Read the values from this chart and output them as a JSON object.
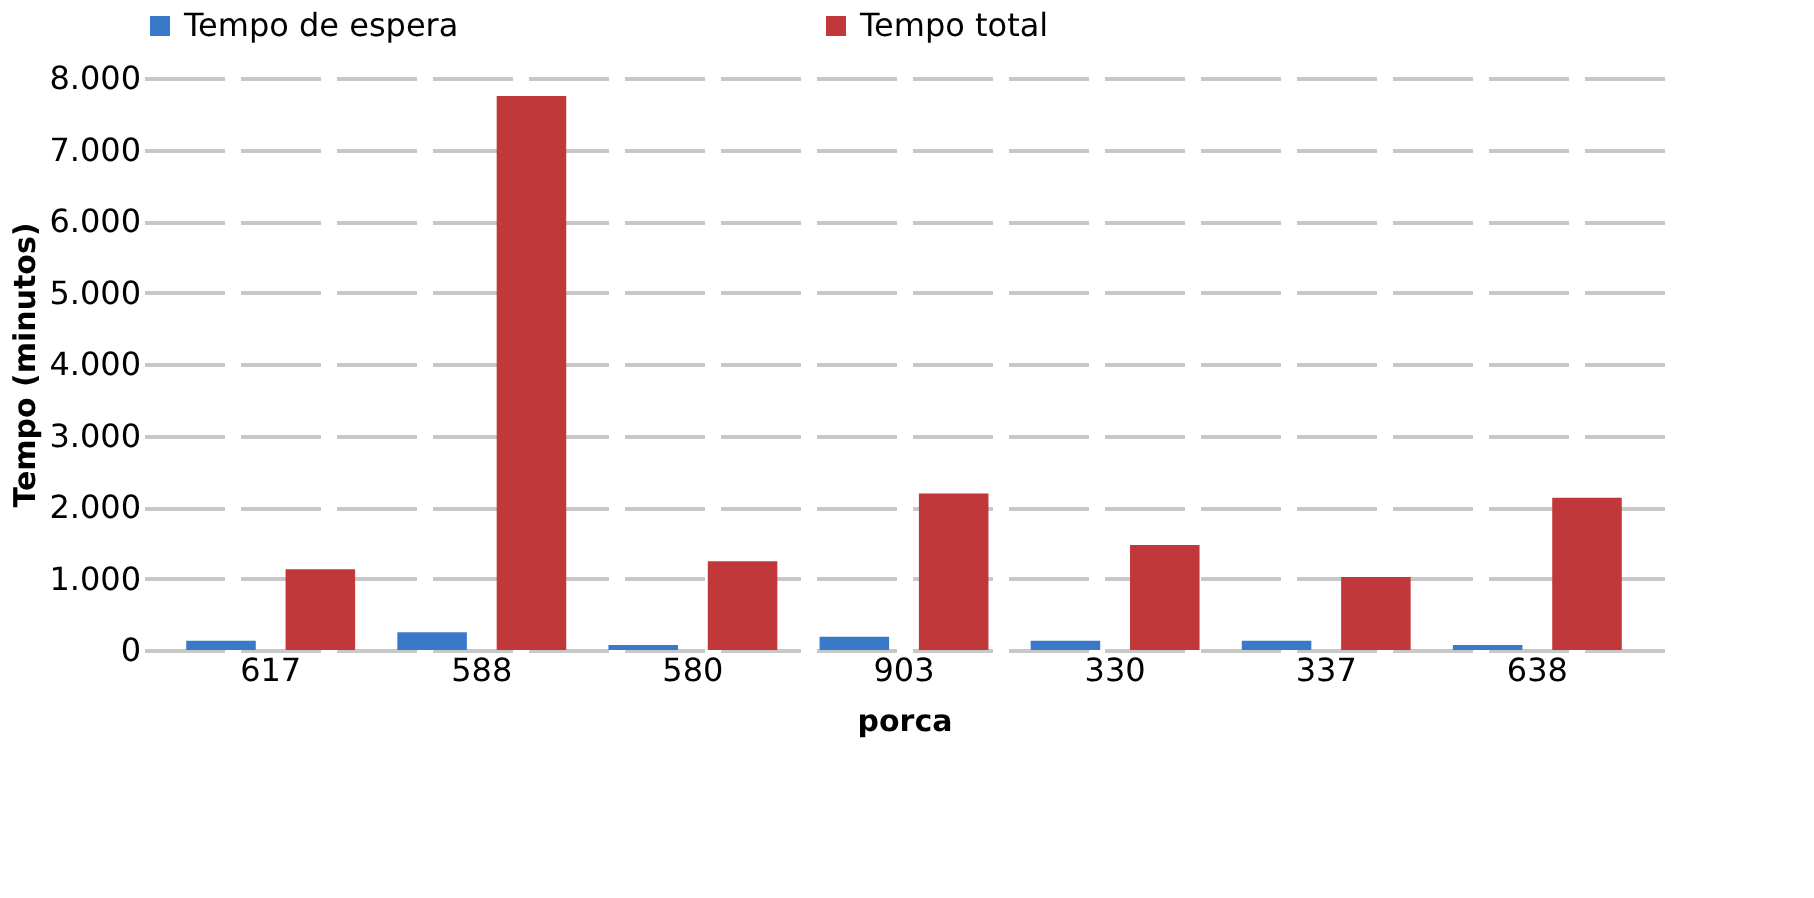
{
  "chart_data": {
    "type": "bar",
    "xlabel": "porca",
    "ylabel": "Tempo (minutos)",
    "categories": [
      "617",
      "588",
      "580",
      "903",
      "330",
      "337",
      "638"
    ],
    "series": [
      {
        "name": "Tempo de espera",
        "color": "#3a78c8",
        "values": [
          130,
          250,
          70,
          185,
          130,
          130,
          70
        ]
      },
      {
        "name": "Tempo total",
        "color": "#c0383a",
        "values": [
          1130,
          7750,
          1240,
          2190,
          1470,
          1020,
          2130
        ]
      }
    ],
    "ylim": [
      0,
      8000
    ],
    "yticks": [
      0,
      {
        "value": 1000,
        "label": "1.000"
      },
      {
        "value": 2000,
        "label": "2.000"
      },
      {
        "value": 3000,
        "label": "3.000"
      },
      {
        "value": 4000,
        "label": "4.000"
      },
      {
        "value": 5000,
        "label": "5.000"
      },
      {
        "value": 6000,
        "label": "6.000"
      },
      {
        "value": 7000,
        "label": "7.000"
      },
      {
        "value": 8000,
        "label": "8.000"
      }
    ],
    "grid": "y",
    "legend": "top"
  }
}
